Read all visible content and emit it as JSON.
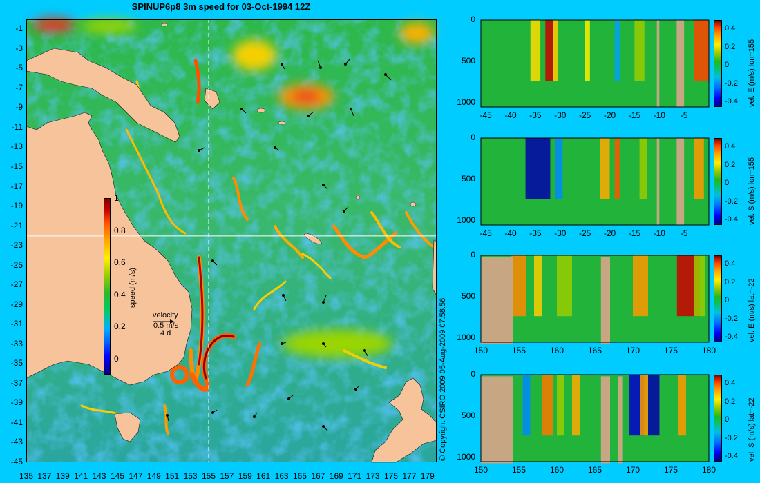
{
  "title": "SPINUP6p8 3m speed for 03-Oct-1994 12Z",
  "copyright": "© Copyright CSIRO 2009  05-Aug-2009 07:58:56",
  "colors": {
    "background": "#00ccff",
    "land": "#f6c39b",
    "section_land": "#c7a783"
  },
  "chart_data": [
    {
      "type": "heatmap",
      "name": "map",
      "title": "SPINUP6p8 3m speed for 03-Oct-1994 12Z",
      "xlim": [
        135,
        180
      ],
      "ylim": [
        -45,
        0
      ],
      "x_ticks": [
        "135",
        "137",
        "139",
        "141",
        "143",
        "145",
        "147",
        "149",
        "151",
        "153",
        "155",
        "157",
        "159",
        "161",
        "163",
        "165",
        "167",
        "169",
        "171",
        "173",
        "175",
        "177",
        "179"
      ],
      "y_ticks": [
        "-1",
        "-3",
        "-5",
        "-7",
        "-9",
        "-11",
        "-13",
        "-15",
        "-17",
        "-19",
        "-21",
        "-23",
        "-25",
        "-27",
        "-29",
        "-31",
        "-33",
        "-35",
        "-37",
        "-39",
        "-41",
        "-43",
        "-45"
      ],
      "section_lines": {
        "lon": 155,
        "lat": -22
      },
      "colorbar": {
        "label": "speed (m/s)",
        "ticks": [
          "0",
          "0.2",
          "0.4",
          "0.6",
          "0.8",
          "1"
        ],
        "range": [
          -0.1,
          1
        ]
      },
      "velocity_key": {
        "label": "velocity",
        "speed": "0.5 m/s",
        "duration": "4 d"
      }
    },
    {
      "type": "heatmap",
      "name": "section-1",
      "xlim": [
        -46,
        0
      ],
      "ylim": [
        0,
        1050
      ],
      "x_ticks": [
        "-45",
        "-40",
        "-35",
        "-30",
        "-25",
        "-20",
        "-15",
        "-10",
        "-5"
      ],
      "y_ticks": [
        "0",
        "500",
        "1000"
      ],
      "colorbar": {
        "label": "vel. E (m/s) lon=155",
        "ticks": [
          "0.4",
          "0.2",
          "0",
          "-0.2",
          "-0.4"
        ],
        "range": [
          -0.45,
          0.5
        ]
      }
    },
    {
      "type": "heatmap",
      "name": "section-2",
      "xlim": [
        -46,
        0
      ],
      "ylim": [
        0,
        1050
      ],
      "x_ticks": [
        "-45",
        "-40",
        "-35",
        "-30",
        "-25",
        "-20",
        "-15",
        "-10",
        "-5"
      ],
      "y_ticks": [
        "0",
        "500",
        "1000"
      ],
      "colorbar": {
        "label": "vel. S (m/s) lon=155",
        "ticks": [
          "0.4",
          "0.2",
          "0",
          "-0.2",
          "-0.4"
        ],
        "range": [
          -0.45,
          0.5
        ]
      }
    },
    {
      "type": "heatmap",
      "name": "section-3",
      "xlim": [
        150,
        180
      ],
      "ylim": [
        0,
        1050
      ],
      "x_ticks": [
        "150",
        "155",
        "160",
        "165",
        "170",
        "175",
        "180"
      ],
      "y_ticks": [
        "0",
        "500",
        "1000"
      ],
      "colorbar": {
        "label": "vel. E (m/s) lat=-22",
        "ticks": [
          "0.4",
          "0.2",
          "0",
          "-0.2",
          "-0.4"
        ],
        "range": [
          -0.45,
          0.5
        ]
      }
    },
    {
      "type": "heatmap",
      "name": "section-4",
      "xlim": [
        150,
        180
      ],
      "ylim": [
        0,
        1050
      ],
      "x_ticks": [
        "150",
        "155",
        "160",
        "165",
        "170",
        "175",
        "180"
      ],
      "y_ticks": [
        "0",
        "500",
        "1000"
      ],
      "colorbar": {
        "label": "vel. S (m/s) lat=-22",
        "ticks": [
          "0.4",
          "0.2",
          "0",
          "-0.2",
          "-0.4"
        ],
        "range": [
          -0.45,
          0.5
        ]
      }
    }
  ]
}
